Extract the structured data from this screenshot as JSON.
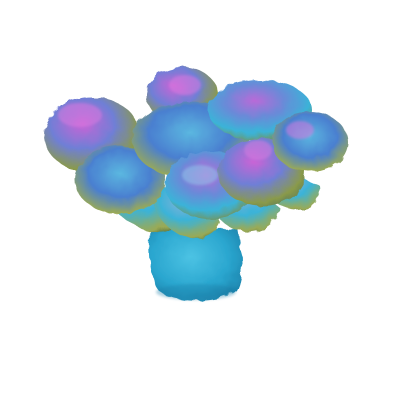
{
  "scene": {
    "background": "#ffffff",
    "subject": "coral-like-3d-mesh",
    "colors": {
      "stalk": "#2aa6cf",
      "stalk_shadow": "#1b7fa8",
      "cyan": "#3bb3d8",
      "blue": "#4a7fd0",
      "violet": "#8a5ad0",
      "magenta": "#c964d6",
      "olive": "#8a9a4a",
      "yellow_green": "#aab84e",
      "dark_teal": "#2d6e7a"
    }
  }
}
